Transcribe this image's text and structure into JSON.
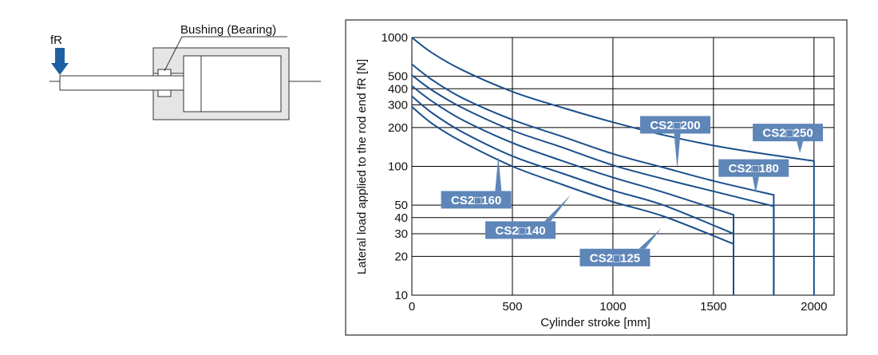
{
  "diagram": {
    "force_label": "fR",
    "bushing_label": "Bushing (Bearing)"
  },
  "colors": {
    "curve": "#1a4f8c",
    "label_fill": "#5f86b8",
    "arrow": "#1f5fa3",
    "cylinder_fill": "#e5e5e5",
    "grid": "#000000"
  },
  "chart_data": {
    "type": "line",
    "xlabel": "Cylinder stroke [mm]",
    "ylabel": "Lateral load applied to the rod end fR [N]",
    "xlim": [
      0,
      2100
    ],
    "ylim": [
      10,
      1000
    ],
    "yscale": "log",
    "grid": true,
    "x_ticks": [
      0,
      500,
      1000,
      1500,
      2000
    ],
    "x_tick_labels": [
      "0",
      "500",
      "1000",
      "1500",
      "2000"
    ],
    "y_ticks": [
      10,
      20,
      30,
      40,
      50,
      100,
      200,
      300,
      400,
      500,
      1000
    ],
    "y_tick_labels": [
      "10",
      "20",
      "30",
      "40",
      "50",
      "100",
      "200",
      "300",
      "400",
      "500",
      "1000"
    ],
    "series": [
      {
        "name": "CS2□250",
        "x": [
          0,
          100,
          250,
          500,
          750,
          1000,
          1250,
          1500,
          1750,
          2000
        ],
        "y": [
          1000,
          760,
          560,
          380,
          285,
          220,
          175,
          145,
          125,
          110
        ],
        "drop_to": 10
      },
      {
        "name": "CS2□200",
        "x": [
          0,
          100,
          250,
          500,
          750,
          1000,
          1250,
          1500,
          1800
        ],
        "y": [
          620,
          470,
          340,
          230,
          170,
          125,
          98,
          77,
          60
        ],
        "drop_to": 10
      },
      {
        "name": "CS2□180",
        "x": [
          0,
          100,
          250,
          500,
          750,
          1000,
          1250,
          1500,
          1800
        ],
        "y": [
          510,
          390,
          285,
          190,
          140,
          102,
          80,
          64,
          49
        ],
        "drop_to": 10
      },
      {
        "name": "CS2□160",
        "x": [
          0,
          100,
          250,
          500,
          750,
          1000,
          1250,
          1600
        ],
        "y": [
          420,
          320,
          230,
          152,
          110,
          82,
          63,
          42
        ],
        "drop_to": 10
      },
      {
        "name": "CS2□140",
        "x": [
          0,
          100,
          250,
          500,
          750,
          1000,
          1250,
          1600
        ],
        "y": [
          350,
          260,
          185,
          120,
          88,
          65,
          50,
          30
        ],
        "drop_to": 10
      },
      {
        "name": "CS2□125",
        "x": [
          0,
          100,
          250,
          500,
          750,
          1000,
          1250,
          1600
        ],
        "y": [
          290,
          215,
          155,
          100,
          72,
          53,
          41,
          25
        ],
        "drop_to": 10
      }
    ],
    "labels": [
      {
        "text": "CS2□200",
        "series": "CS2□200",
        "anchor_x": 1310,
        "anchor_y": 210,
        "pointer_x": 1320,
        "pointer_y": 95
      },
      {
        "text": "CS2□250",
        "series": "CS2□250",
        "anchor_x": 1870,
        "anchor_y": 183,
        "pointer_x": 1930,
        "pointer_y": 127
      },
      {
        "text": "CS2□180",
        "series": "CS2□180",
        "anchor_x": 1700,
        "anchor_y": 97,
        "pointer_x": 1710,
        "pointer_y": 62
      },
      {
        "text": "CS2□160",
        "series": "CS2□160",
        "anchor_x": 320,
        "anchor_y": 55,
        "pointer_x": 430,
        "pointer_y": 120
      },
      {
        "text": "CS2□140",
        "series": "CS2□140",
        "anchor_x": 540,
        "anchor_y": 32,
        "pointer_x": 790,
        "pointer_y": 60
      },
      {
        "text": "CS2□125",
        "series": "CS2□125",
        "anchor_x": 1010,
        "anchor_y": 19.6,
        "pointer_x": 1240,
        "pointer_y": 33
      }
    ]
  }
}
